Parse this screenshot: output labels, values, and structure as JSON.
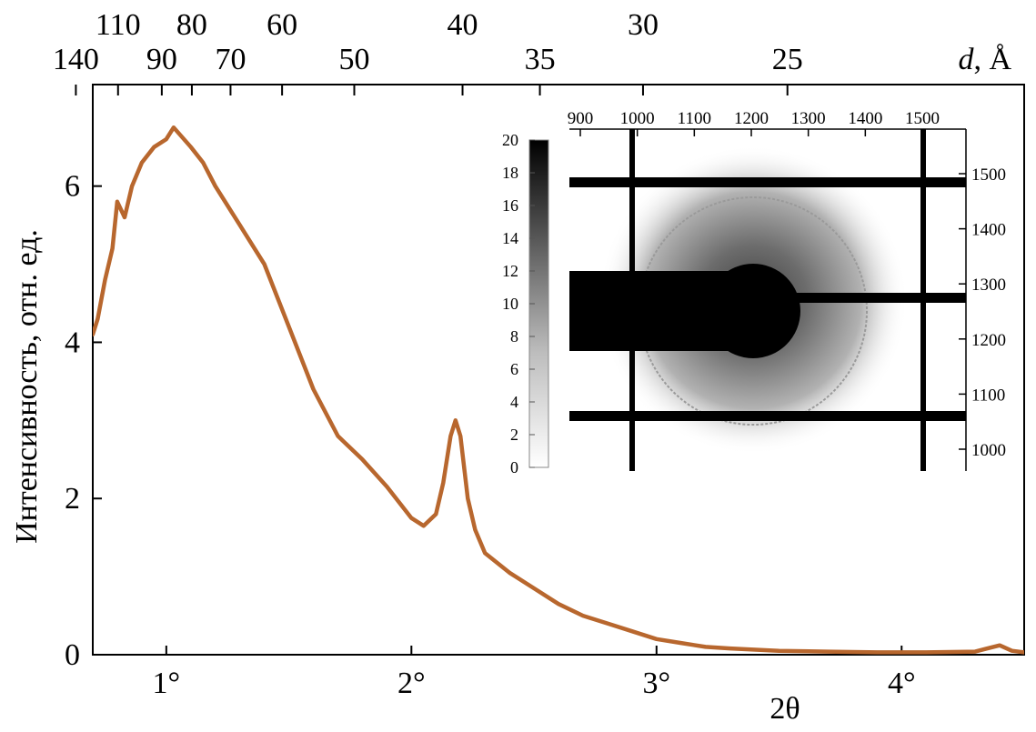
{
  "chart_data": {
    "type": "line",
    "xlabel": "2θ",
    "ylabel": "Интенсивность, отн. ед.",
    "xlim": [
      0.7,
      4.5
    ],
    "ylim": [
      0,
      7.3
    ],
    "x_ticks": [
      {
        "value": 1,
        "label": "1°"
      },
      {
        "value": 2,
        "label": "2°"
      },
      {
        "value": 3,
        "label": "3°"
      },
      {
        "value": 4,
        "label": "4°"
      }
    ],
    "y_ticks": [
      {
        "value": 0,
        "label": "0"
      },
      {
        "value": 2,
        "label": "2"
      },
      {
        "value": 4,
        "label": "4"
      },
      {
        "value": 6,
        "label": "6"
      }
    ],
    "line_color": "#b8672e",
    "top_axis": {
      "label_var": "d",
      "label_unit": ", Å",
      "ticks_upper": [
        {
          "value": 110,
          "label": "110"
        },
        {
          "value": 80,
          "label": "80"
        },
        {
          "value": 60,
          "label": "60"
        },
        {
          "value": 40,
          "label": "40"
        },
        {
          "value": 30,
          "label": "30"
        }
      ],
      "ticks_lower": [
        {
          "value": 140,
          "label": "140"
        },
        {
          "value": 90,
          "label": "90"
        },
        {
          "value": 70,
          "label": "70"
        },
        {
          "value": 50,
          "label": "50"
        },
        {
          "value": 35,
          "label": "35"
        },
        {
          "value": 25,
          "label": "25"
        }
      ]
    },
    "series": [
      {
        "x": [
          0.7,
          0.72,
          0.75,
          0.78,
          0.8,
          0.83,
          0.86,
          0.9,
          0.95,
          1.0,
          1.03,
          1.1,
          1.15,
          1.2,
          1.3,
          1.4,
          1.5,
          1.6,
          1.7,
          1.8,
          1.9,
          2.0,
          2.05,
          2.1,
          2.13,
          2.16,
          2.18,
          2.2,
          2.23,
          2.26,
          2.3,
          2.4,
          2.5,
          2.6,
          2.7,
          2.8,
          2.9,
          3.0,
          3.1,
          3.2,
          3.3,
          3.5,
          3.7,
          3.9,
          4.1,
          4.3,
          4.35,
          4.4,
          4.45,
          4.5
        ],
        "y": [
          4.1,
          4.3,
          4.8,
          5.2,
          5.8,
          5.6,
          6.0,
          6.3,
          6.5,
          6.6,
          6.75,
          6.5,
          6.3,
          6.0,
          5.5,
          5.0,
          4.2,
          3.4,
          2.8,
          2.5,
          2.15,
          1.75,
          1.65,
          1.8,
          2.2,
          2.8,
          3.0,
          2.8,
          2.0,
          1.6,
          1.3,
          1.05,
          0.85,
          0.65,
          0.5,
          0.4,
          0.3,
          0.2,
          0.15,
          0.1,
          0.08,
          0.05,
          0.04,
          0.03,
          0.03,
          0.04,
          0.08,
          0.12,
          0.05,
          0.03
        ]
      }
    ]
  },
  "inset": {
    "colorbar_ticks": [
      "0",
      "2",
      "4",
      "6",
      "8",
      "10",
      "12",
      "14",
      "16",
      "18",
      "20"
    ],
    "x_ticks": [
      "900",
      "1000",
      "1100",
      "1200",
      "1300",
      "1400",
      "1500"
    ],
    "y_ticks": [
      "1000",
      "1100",
      "1200",
      "1300",
      "1400",
      "1500"
    ]
  }
}
